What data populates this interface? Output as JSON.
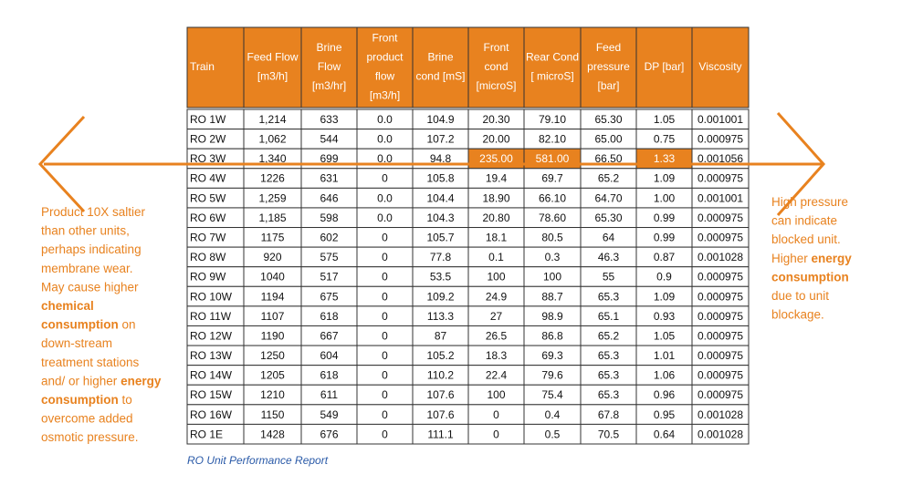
{
  "table": {
    "headers": [
      [
        "Train"
      ],
      [
        "Feed Flow",
        "[m3/h]"
      ],
      [
        "Brine",
        "Flow",
        "[m3/hr]"
      ],
      [
        "Front",
        "product",
        "flow",
        "[m3/h]"
      ],
      [
        "Brine",
        "cond [mS]"
      ],
      [
        "Front",
        "cond",
        "[microS]"
      ],
      [
        "Rear Cond",
        "[ microS]"
      ],
      [
        "Feed",
        "pressure",
        "[bar]"
      ],
      [
        "DP [bar]"
      ],
      [
        "Viscosity"
      ]
    ],
    "rows": [
      [
        "RO 1W",
        "1,214",
        "633",
        "0.0",
        "104.9",
        "20.30",
        "79.10",
        "65.30",
        "1.05",
        "0.001001"
      ],
      [
        "RO 2W",
        "1,062",
        "544",
        "0.0",
        "107.2",
        "20.00",
        "82.10",
        "65.00",
        "0.75",
        "0.000975"
      ],
      [
        "RO 3W",
        "1,340",
        "699",
        "0.0",
        "94.8",
        {
          "text": "235.00",
          "highlight": true
        },
        {
          "text": "581.00",
          "highlight": true
        },
        "66.50",
        {
          "text": "1.33",
          "highlight": true
        },
        "0.001056"
      ],
      [
        "RO 4W",
        "1226",
        "631",
        "0",
        "105.8",
        "19.4",
        "69.7",
        "65.2",
        "1.09",
        "0.000975"
      ],
      [
        "RO 5W",
        "1,259",
        "646",
        "0.0",
        "104.4",
        "18.90",
        "66.10",
        "64.70",
        "1.00",
        "0.001001"
      ],
      [
        "RO 6W",
        "1,185",
        "598",
        "0.0",
        "104.3",
        "20.80",
        "78.60",
        "65.30",
        "0.99",
        "0.000975"
      ],
      [
        "RO 7W",
        "1175",
        "602",
        "0",
        "105.7",
        "18.1",
        "80.5",
        "64",
        "0.99",
        "0.000975"
      ],
      [
        "RO 8W",
        "920",
        "575",
        "0",
        "77.8",
        "0.1",
        "0.3",
        "46.3",
        "0.87",
        "0.001028"
      ],
      [
        "RO 9W",
        "1040",
        "517",
        "0",
        "53.5",
        "100",
        "100",
        "55",
        "0.9",
        "0.000975"
      ],
      [
        "RO 10W",
        "1194",
        "675",
        "0",
        "109.2",
        "24.9",
        "88.7",
        "65.3",
        "1.09",
        "0.000975"
      ],
      [
        "RO 11W",
        "1107",
        "618",
        "0",
        "113.3",
        "27",
        "98.9",
        "65.1",
        "0.93",
        "0.000975"
      ],
      [
        "RO 12W",
        "1190",
        "667",
        "0",
        "87",
        "26.5",
        "86.8",
        "65.2",
        "1.05",
        "0.000975"
      ],
      [
        "RO 13W",
        "1250",
        "604",
        "0",
        "105.2",
        "18.3",
        "69.3",
        "65.3",
        "1.01",
        "0.000975"
      ],
      [
        "RO 14W",
        "1205",
        "618",
        "0",
        "110.2",
        "22.4",
        "79.6",
        "65.3",
        "1.06",
        "0.000975"
      ],
      [
        "RO 15W",
        "1210",
        "611",
        "0",
        "107.6",
        "100",
        "75.4",
        "65.3",
        "0.96",
        "0.000975"
      ],
      [
        "RO 16W",
        "1150",
        "549",
        "0",
        "107.6",
        "0",
        "0.4",
        "67.8",
        "0.95",
        "0.001028"
      ],
      [
        "RO 1E",
        "1428",
        "676",
        "0",
        "111.1",
        "0",
        "0.5",
        "70.5",
        "0.64",
        "0.001028"
      ]
    ]
  },
  "left_note": [
    [
      "Product 10X saltier"
    ],
    [
      "than other units,"
    ],
    [
      "perhaps indicating"
    ],
    [
      "membrane wear."
    ],
    [
      "May cause higher"
    ],
    [
      {
        "text": "chemical",
        "bold": true
      }
    ],
    [
      {
        "text": "consumption",
        "bold": true
      },
      " on"
    ],
    [
      "down-stream"
    ],
    [
      "treatment stations"
    ],
    [
      "and/ or higher ",
      {
        "text": "energy",
        "bold": true
      }
    ],
    [
      {
        "text": "consumption",
        "bold": true
      },
      " to"
    ],
    [
      "overcome added"
    ],
    [
      "osmotic pressure."
    ]
  ],
  "right_note": [
    [
      "High pressure"
    ],
    [
      "can indicate"
    ],
    [
      "blocked unit."
    ],
    [
      "Higher ",
      {
        "text": "energy",
        "bold": true
      }
    ],
    [
      {
        "text": "consumption",
        "bold": true
      }
    ],
    [
      "due to unit"
    ],
    [
      "blockage."
    ]
  ],
  "caption": "RO Unit Performance Report"
}
